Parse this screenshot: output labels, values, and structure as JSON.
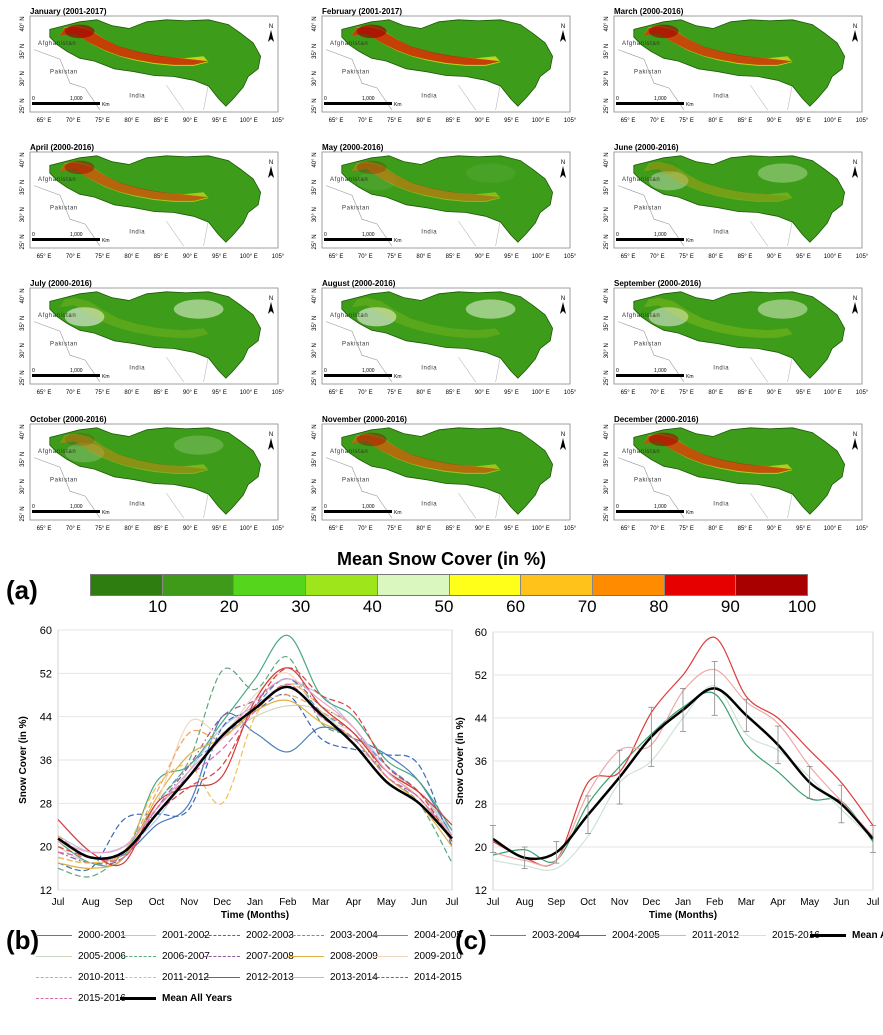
{
  "maps": {
    "panels": [
      {
        "title": "January (2001-2017)",
        "intensity": 0.95
      },
      {
        "title": "February (2001-2017)",
        "intensity": 0.95
      },
      {
        "title": "March (2000-2016)",
        "intensity": 0.9
      },
      {
        "title": "April (2000-2016)",
        "intensity": 0.75
      },
      {
        "title": "May (2000-2016)",
        "intensity": 0.55
      },
      {
        "title": "June (2000-2016)",
        "intensity": 0.35
      },
      {
        "title": "July (2000-2016)",
        "intensity": 0.2
      },
      {
        "title": "August (2000-2016)",
        "intensity": 0.2
      },
      {
        "title": "September (2000-2016)",
        "intensity": 0.25
      },
      {
        "title": "October (2000-2016)",
        "intensity": 0.45
      },
      {
        "title": "November (2000-2016)",
        "intensity": 0.7
      },
      {
        "title": "December (2000-2016)",
        "intensity": 0.85
      }
    ],
    "lat_labels": [
      "40° N",
      "35° N",
      "30° N",
      "25° N"
    ],
    "lon_labels": [
      "65° E",
      "70° E",
      "75° E",
      "80° E",
      "85° E",
      "90° E",
      "95° E",
      "100° E",
      "105°"
    ],
    "countries": [
      "Afghanistan",
      "Pakistan",
      "India"
    ],
    "scale_label": "1,000",
    "scale_zero": "0",
    "scale_unit": "Km",
    "north": "N"
  },
  "legend": {
    "title": "Mean Snow Cover (in %)",
    "panel_label": "(a)",
    "colors": [
      "#2e7d10",
      "#3f9a1a",
      "#55d61c",
      "#9fe51c",
      "#d9f7bf",
      "#ffff1a",
      "#ffc21a",
      "#ff8c00",
      "#e60000",
      "#a80000"
    ],
    "ticks": [
      "10",
      "20",
      "30",
      "40",
      "50",
      "60",
      "70",
      "80",
      "90",
      "100"
    ]
  },
  "chart_data": [
    {
      "type": "line",
      "panel_label": "(b)",
      "xlabel": "Time (Months)",
      "ylabel": "Snow Cover (in %)",
      "x": [
        "Jul",
        "Aug",
        "Sep",
        "Oct",
        "Nov",
        "Dec",
        "Jan",
        "Feb",
        "Mar",
        "Apr",
        "May",
        "Jun",
        "Jul"
      ],
      "ylim": [
        12,
        60
      ],
      "yticks": [
        12,
        20,
        28,
        36,
        44,
        52,
        60
      ],
      "series": [
        {
          "name": "2000-2001",
          "color": "#4a7ebb",
          "dash": "solid",
          "values": [
            21,
            18,
            18.5,
            24,
            28,
            44,
            41,
            37.5,
            42,
            40,
            37,
            32,
            22
          ]
        },
        {
          "name": "2001-2002",
          "color": "#b7c4e6",
          "dash": "solid",
          "values": [
            22,
            19,
            20,
            25,
            34,
            42,
            46,
            50,
            48,
            42,
            35,
            30,
            23
          ]
        },
        {
          "name": "2002-2003",
          "color": "#3a6bb5",
          "dash": "dash",
          "values": [
            17,
            16,
            25,
            26,
            27,
            42,
            45,
            48,
            40,
            38,
            37,
            35,
            20
          ]
        },
        {
          "name": "2003-2004",
          "color": "#5b8fd4",
          "dash": "dash",
          "values": [
            18,
            17,
            19,
            28,
            35,
            40,
            46,
            51,
            45,
            41,
            35,
            30,
            22
          ]
        },
        {
          "name": "2004-2005",
          "color": "#4aa883",
          "dash": "solid",
          "values": [
            21,
            17,
            18,
            32,
            35,
            43,
            51,
            59,
            48,
            44,
            36,
            32,
            23
          ]
        },
        {
          "name": "2005-2006",
          "color": "#c8d6c0",
          "dash": "solid",
          "values": [
            20,
            17,
            19,
            27,
            33,
            40,
            44,
            46,
            45,
            39,
            34,
            30,
            22
          ]
        },
        {
          "name": "2006-2007",
          "color": "#5da87a",
          "dash": "dash",
          "values": [
            16,
            14.5,
            19,
            28,
            36,
            52.5,
            49,
            55,
            43,
            40,
            33,
            28,
            17
          ]
        },
        {
          "name": "2007-2008",
          "color": "#8b5a9b",
          "dash": "dashdot",
          "values": [
            19,
            17,
            18,
            27,
            35,
            44,
            47,
            51,
            46,
            42,
            33,
            29,
            21
          ]
        },
        {
          "name": "2008-2009",
          "color": "#e0b040",
          "dash": "solid",
          "values": [
            17,
            16,
            18,
            29,
            37,
            40,
            45,
            47,
            43,
            40,
            33,
            28,
            20
          ]
        },
        {
          "name": "2009-2010",
          "color": "#f0d8c0",
          "dash": "solid",
          "values": [
            21,
            18,
            19,
            28,
            43,
            41,
            48,
            52,
            44,
            41,
            34,
            29,
            22
          ]
        },
        {
          "name": "2010-2011",
          "color": "#f0a060",
          "dash": "dash",
          "values": [
            22,
            18,
            19,
            30,
            41,
            40,
            46,
            48,
            45,
            41,
            34,
            29,
            22
          ]
        },
        {
          "name": "2011-2012",
          "color": "#f0c050",
          "dash": "dash",
          "values": [
            18,
            17,
            19,
            31,
            35,
            28,
            44,
            50,
            46,
            42,
            34,
            29,
            21
          ]
        },
        {
          "name": "2012-2013",
          "color": "#d33a3a",
          "dash": "solid",
          "values": [
            25,
            19,
            17,
            28,
            31,
            33,
            47,
            53,
            46,
            41,
            34,
            30,
            24
          ]
        },
        {
          "name": "2013-2014",
          "color": "#e8a4c8",
          "dash": "solid",
          "values": [
            21,
            19,
            20,
            27,
            34,
            40,
            47,
            51,
            47,
            42,
            34,
            29,
            22
          ]
        },
        {
          "name": "2014-2015",
          "color": "#d94040",
          "dash": "dash",
          "values": [
            20,
            18,
            18,
            26,
            31,
            35,
            46,
            53,
            48,
            45,
            35,
            30,
            21
          ]
        },
        {
          "name": "2015-2016",
          "color": "#d86ab0",
          "dash": "dash",
          "values": [
            19,
            18,
            18,
            27,
            33,
            38,
            45,
            50,
            44,
            40,
            33,
            29,
            21
          ]
        },
        {
          "name": "Mean All Years",
          "color": "#000000",
          "dash": "solid",
          "width": 2.5,
          "values": [
            21.5,
            18,
            19,
            26,
            33,
            40.5,
            45.5,
            49.5,
            44.5,
            39,
            32,
            28,
            21.5
          ]
        }
      ]
    },
    {
      "type": "line",
      "panel_label": "(c)",
      "xlabel": "Time (Months)",
      "ylabel": "Snow Cover (in %)",
      "x": [
        "Jul",
        "Aug",
        "Sep",
        "Oct",
        "Nov",
        "Dec",
        "Jan",
        "Feb",
        "Mar",
        "Apr",
        "May",
        "Jun",
        "Jul"
      ],
      "ylim": [
        12,
        60
      ],
      "yticks": [
        12,
        20,
        28,
        36,
        44,
        52,
        60
      ],
      "series": [
        {
          "name": "2003-2004",
          "color": "#3aa06a",
          "dash": "solid",
          "values": [
            18.5,
            19.5,
            17.5,
            28,
            35,
            41,
            46,
            48.5,
            39,
            34,
            29,
            28.5,
            21
          ]
        },
        {
          "name": "2004-2005",
          "color": "#dd3b3b",
          "dash": "solid",
          "values": [
            21,
            18,
            17.5,
            32,
            34,
            45,
            52,
            59,
            48,
            44,
            38,
            32,
            24
          ]
        },
        {
          "name": "2011-2012",
          "color": "#f0a8a8",
          "dash": "solid",
          "values": [
            19,
            17.5,
            17.5,
            30,
            38,
            39,
            49,
            53,
            47,
            43,
            35,
            28.5,
            22
          ]
        },
        {
          "name": "2015-2016",
          "color": "#cfe3d8",
          "dash": "solid",
          "values": [
            17.5,
            16.5,
            16,
            22,
            32,
            36,
            44,
            50,
            41,
            38,
            33,
            27,
            21.5
          ]
        },
        {
          "name": "Mean All Years",
          "color": "#000000",
          "dash": "solid",
          "width": 2.5,
          "values": [
            21.5,
            18,
            19,
            26,
            33,
            40.5,
            45.5,
            49.5,
            44.5,
            39,
            32,
            28,
            21.5
          ],
          "errors": [
            2.5,
            2,
            2,
            3.5,
            5,
            5.5,
            4,
            5,
            3,
            3.5,
            3,
            3.5,
            2.5
          ]
        }
      ]
    }
  ]
}
